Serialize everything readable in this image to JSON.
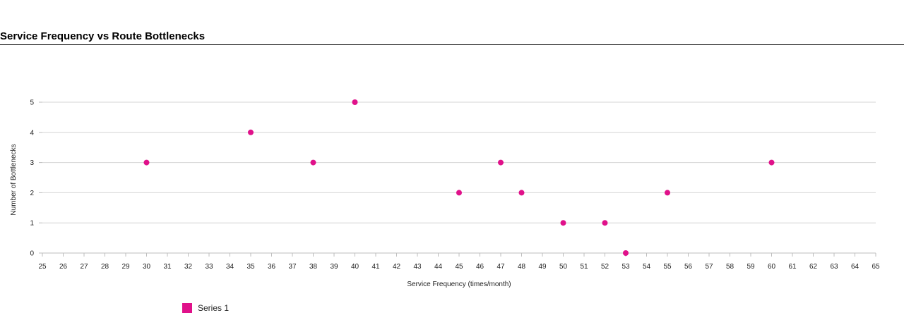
{
  "chart_data": {
    "type": "scatter",
    "title": "Service Frequency vs Route Bottlenecks",
    "xlabel": "Service Frequency (times/month)",
    "ylabel": "Number of Bottlenecks",
    "xlim": [
      25,
      65
    ],
    "ylim": [
      0,
      5
    ],
    "x_ticks": [
      25,
      26,
      27,
      28,
      29,
      30,
      31,
      32,
      33,
      34,
      35,
      36,
      37,
      38,
      39,
      40,
      41,
      42,
      43,
      44,
      45,
      46,
      47,
      48,
      49,
      50,
      51,
      52,
      53,
      54,
      55,
      56,
      57,
      58,
      59,
      60,
      61,
      62,
      63,
      64,
      65
    ],
    "y_ticks": [
      0,
      1,
      2,
      3,
      4,
      5
    ],
    "grid": true,
    "legend_position": "bottom-left",
    "series": [
      {
        "name": "Series 1",
        "color": "#e0118a",
        "points": [
          {
            "x": 30,
            "y": 3
          },
          {
            "x": 35,
            "y": 4
          },
          {
            "x": 38,
            "y": 3
          },
          {
            "x": 40,
            "y": 5
          },
          {
            "x": 45,
            "y": 2
          },
          {
            "x": 47,
            "y": 3
          },
          {
            "x": 48,
            "y": 2
          },
          {
            "x": 50,
            "y": 1
          },
          {
            "x": 52,
            "y": 1
          },
          {
            "x": 53,
            "y": 0
          },
          {
            "x": 55,
            "y": 2
          },
          {
            "x": 60,
            "y": 3
          }
        ]
      }
    ]
  }
}
